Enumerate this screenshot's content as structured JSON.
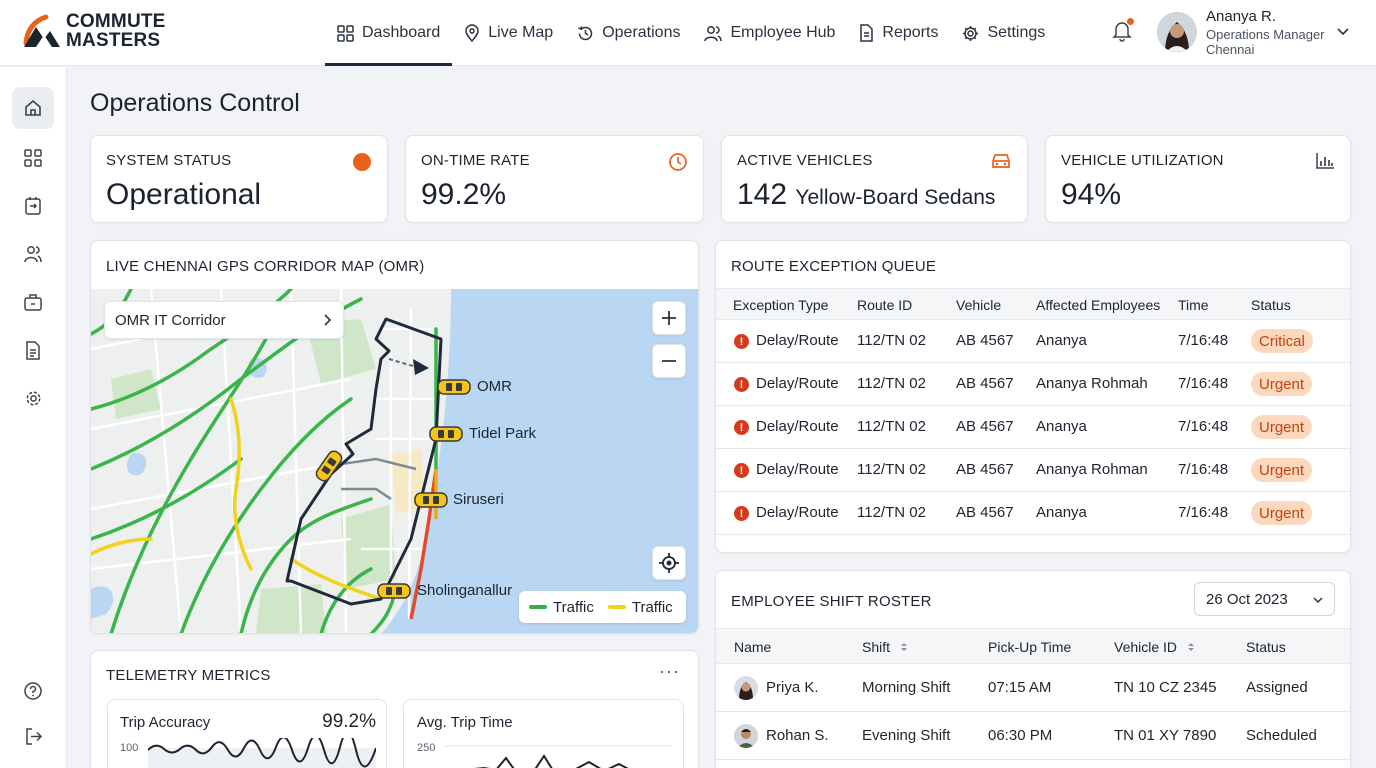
{
  "brand": {
    "line1": "COMMUTE",
    "line2": "MASTERS"
  },
  "nav": [
    {
      "label": "Dashboard",
      "icon": "dashboard-grid-icon",
      "active": true
    },
    {
      "label": "Live Map",
      "icon": "map-pin-icon"
    },
    {
      "label": "Operations",
      "icon": "history-clock-icon"
    },
    {
      "label": "Employee Hub",
      "icon": "users-icon"
    },
    {
      "label": "Reports",
      "icon": "document-icon"
    },
    {
      "label": "Settings",
      "icon": "gear-icon"
    }
  ],
  "user": {
    "name": "Ananya R.",
    "role": "Operations Manager",
    "location": "Chennai"
  },
  "page_title": "Operations Control",
  "kpis": [
    {
      "label": "SYSTEM STATUS",
      "value": "Operational",
      "icon": "status-dot-icon"
    },
    {
      "label": "ON-TIME RATE",
      "value": "99.2%",
      "icon": "clock-icon"
    },
    {
      "label": "ACTIVE VEHICLES",
      "value": "142",
      "sub": "Yellow-Board Sedans",
      "icon": "car-icon"
    },
    {
      "label": "VEHICLE UTILIZATION",
      "value": "94%",
      "icon": "bar-chart-icon"
    }
  ],
  "map": {
    "title": "LIVE CHENNAI GPS CORRIDOR MAP (OMR)",
    "corridor": "OMR IT Corridor",
    "places": [
      "OMR",
      "Tidel Park",
      "Siruseri",
      "Sholinganallur"
    ],
    "legend": [
      {
        "label": "Traffic",
        "color": "#2fb344"
      },
      {
        "label": "Traffic",
        "color": "#f2d21b"
      }
    ]
  },
  "exceptions": {
    "title": "ROUTE EXCEPTION QUEUE",
    "columns": [
      "Exception Type",
      "Route ID",
      "Vehicle",
      "Affected Employees",
      "Time",
      "Status"
    ],
    "rows": [
      {
        "type": "Delay/Route",
        "route": "112/TN 02",
        "vehicle": "AB 4567",
        "employees": "Ananya",
        "time": "7/16:48",
        "status": "Critical"
      },
      {
        "type": "Delay/Route",
        "route": "112/TN 02",
        "vehicle": "AB 4567",
        "employees": "Ananya Rohmah",
        "time": "7/16:48",
        "status": "Urgent"
      },
      {
        "type": "Delay/Route",
        "route": "112/TN 02",
        "vehicle": "AB 4567",
        "employees": "Ananya",
        "time": "7/16:48",
        "status": "Urgent"
      },
      {
        "type": "Delay/Route",
        "route": "112/TN 02",
        "vehicle": "AB 4567",
        "employees": "Ananya Rohman",
        "time": "7/16:48",
        "status": "Urgent"
      },
      {
        "type": "Delay/Route",
        "route": "112/TN 02",
        "vehicle": "AB 4567",
        "employees": "Ananya",
        "time": "7/16:48",
        "status": "Urgent"
      }
    ]
  },
  "roster": {
    "title": "EMPLOYEE SHIFT ROSTER",
    "date": "26 Oct 2023",
    "columns": [
      "Name",
      "Shift",
      "Pick-Up Time",
      "Vehicle ID",
      "Status"
    ],
    "rows": [
      {
        "name": "Priya K.",
        "shift": "Morning Shift",
        "pickup": "07:15 AM",
        "vehicle": "TN 10 CZ 2345",
        "status": "Assigned"
      },
      {
        "name": "Rohan S.",
        "shift": "Evening Shift",
        "pickup": "06:30 PM",
        "vehicle": "TN 01 XY 7890",
        "status": "Scheduled"
      }
    ]
  },
  "telemetry": {
    "title": "TELEMETRY METRICS",
    "menu": "···",
    "cards": [
      {
        "label": "Trip Accuracy",
        "value": "99.2%",
        "axis_top": "100"
      },
      {
        "label": "Avg. Trip Time",
        "value": "",
        "axis_top": "250"
      }
    ]
  }
}
